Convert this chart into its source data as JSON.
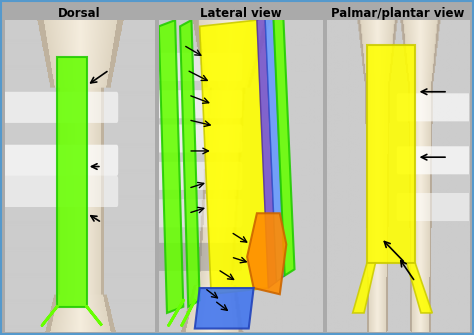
{
  "title_dorsal": "Dorsal",
  "title_lateral": "Lateral view",
  "title_palmar": "Palmar/plantar view",
  "bg_outer": "#aaaaaa",
  "bone_light": "#ddd0b8",
  "bone_dark": "#b8a888",
  "bone_bg": "#c8bca8",
  "green_bright": "#66ff00",
  "green_edge": "#22cc00",
  "yellow": "#ffff00",
  "yellow_edge": "#cccc00",
  "orange": "#ff8c00",
  "orange_edge": "#cc6600",
  "blue_strip": "#5588ff",
  "blue_tri": "#4477ee",
  "purple": "#7755cc",
  "gray_band": "#999999",
  "gray_band_alpha": 0.5,
  "white_glow": "#ffffff",
  "arrow_lw": 1.2,
  "title_fontsize": 8.5,
  "title_fontweight": "bold",
  "panel_border": "#cccccc"
}
